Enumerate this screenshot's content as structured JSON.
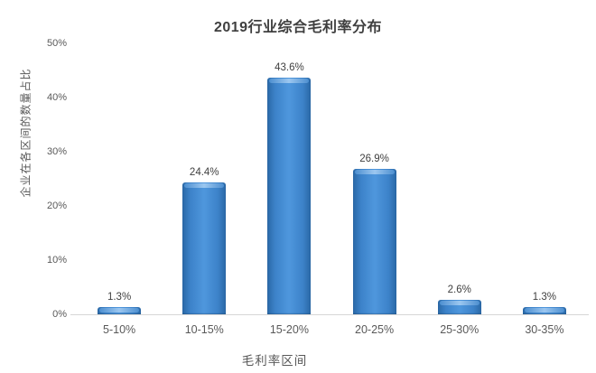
{
  "chart_data": {
    "type": "bar",
    "title": "2019行业综合毛利率分布",
    "xlabel": "毛利率区间",
    "ylabel": "企业在各区间的数量占比",
    "categories": [
      "5-10%",
      "10-15%",
      "15-20%",
      "20-25%",
      "25-30%",
      "30-35%"
    ],
    "values": [
      1.3,
      24.4,
      43.6,
      26.9,
      2.6,
      1.3
    ],
    "value_labels": [
      "1.3%",
      "24.4%",
      "43.6%",
      "26.9%",
      "2.6%",
      "1.3%"
    ],
    "ylim": [
      0,
      50
    ],
    "ytick_step": 10,
    "ytick_labels": [
      "0%",
      "10%",
      "20%",
      "30%",
      "40%",
      "50%"
    ],
    "grid": false,
    "legend": "none",
    "colors": {
      "bar_main": "#3c82c9",
      "bar_edge_dark": "#2a68a6",
      "bar_center_light": "#4f97dd",
      "bar_bevel_highlight": "#9cc7f0",
      "axis_line": "#d6d6d6",
      "text": "#595959",
      "title_text": "#3f3f3f"
    }
  }
}
